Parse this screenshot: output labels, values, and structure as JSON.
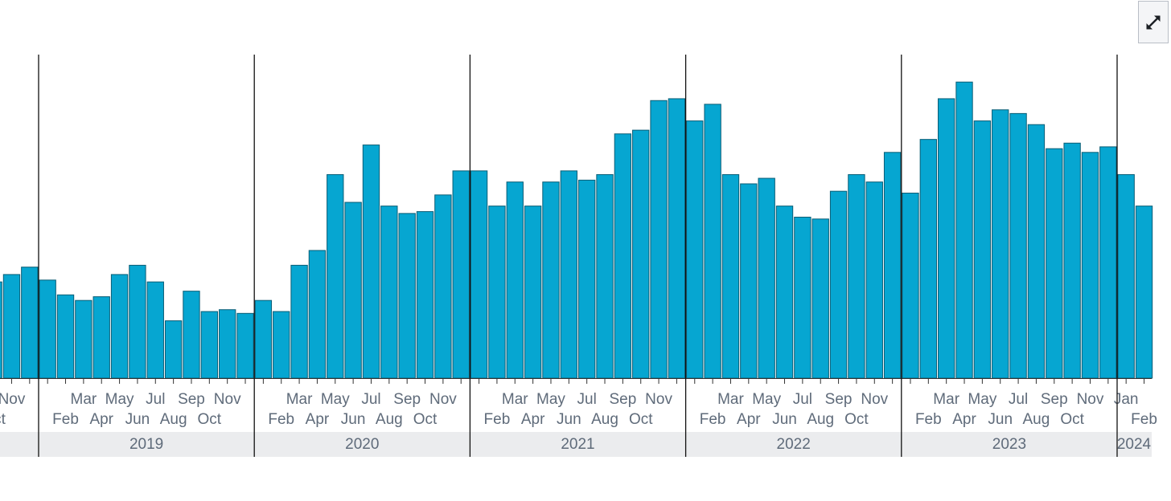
{
  "toolbar": {
    "expand_icon": "expand-arrows-icon"
  },
  "colors": {
    "bar_fill": "#06a6d1",
    "bar_stroke": "#0a5d75",
    "year_band": "#ebecee",
    "divider": "#111111",
    "label": "#5f6b7a"
  },
  "chart_data": {
    "type": "bar",
    "title": "",
    "xlabel": "",
    "ylabel": "",
    "grid": false,
    "legend": "none",
    "y_axis_visible": false,
    "series": [
      {
        "values": [
          [
            2018,
            10,
            52
          ],
          [
            2018,
            11,
            56
          ],
          [
            2018,
            12,
            60
          ],
          [
            2019,
            1,
            53
          ],
          [
            2019,
            2,
            45
          ],
          [
            2019,
            3,
            42
          ],
          [
            2019,
            4,
            44
          ],
          [
            2019,
            5,
            56
          ],
          [
            2019,
            6,
            61
          ],
          [
            2019,
            7,
            52
          ],
          [
            2019,
            8,
            31
          ],
          [
            2019,
            9,
            47
          ],
          [
            2019,
            10,
            36
          ],
          [
            2019,
            11,
            37
          ],
          [
            2019,
            12,
            35
          ],
          [
            2020,
            1,
            42
          ],
          [
            2020,
            2,
            36
          ],
          [
            2020,
            3,
            61
          ],
          [
            2020,
            4,
            69
          ],
          [
            2020,
            5,
            110
          ],
          [
            2020,
            6,
            95
          ],
          [
            2020,
            7,
            126
          ],
          [
            2020,
            8,
            93
          ],
          [
            2020,
            9,
            89
          ],
          [
            2020,
            10,
            90
          ],
          [
            2020,
            11,
            99
          ],
          [
            2020,
            12,
            112
          ],
          [
            2021,
            1,
            112
          ],
          [
            2021,
            2,
            93
          ],
          [
            2021,
            3,
            106
          ],
          [
            2021,
            4,
            93
          ],
          [
            2021,
            5,
            106
          ],
          [
            2021,
            6,
            112
          ],
          [
            2021,
            7,
            107
          ],
          [
            2021,
            8,
            110
          ],
          [
            2021,
            9,
            132
          ],
          [
            2021,
            10,
            134
          ],
          [
            2021,
            11,
            150
          ],
          [
            2021,
            12,
            151
          ],
          [
            2022,
            1,
            139
          ],
          [
            2022,
            2,
            148
          ],
          [
            2022,
            3,
            110
          ],
          [
            2022,
            4,
            105
          ],
          [
            2022,
            5,
            108
          ],
          [
            2022,
            6,
            93
          ],
          [
            2022,
            7,
            87
          ],
          [
            2022,
            8,
            86
          ],
          [
            2022,
            9,
            101
          ],
          [
            2022,
            10,
            110
          ],
          [
            2022,
            11,
            106
          ],
          [
            2022,
            12,
            122
          ],
          [
            2023,
            1,
            100
          ],
          [
            2023,
            2,
            129
          ],
          [
            2023,
            3,
            151
          ],
          [
            2023,
            4,
            160
          ],
          [
            2023,
            5,
            139
          ],
          [
            2023,
            6,
            145
          ],
          [
            2023,
            7,
            143
          ],
          [
            2023,
            8,
            137
          ],
          [
            2023,
            9,
            124
          ],
          [
            2023,
            10,
            127
          ],
          [
            2023,
            11,
            122
          ],
          [
            2023,
            12,
            125
          ],
          [
            2024,
            1,
            110
          ],
          [
            2024,
            2,
            93
          ]
        ]
      }
    ],
    "month_tick_labels": {
      "2018": [
        [
          10,
          "Oct"
        ],
        [
          11,
          "Nov"
        ]
      ],
      "2019": [
        [
          2,
          "Feb"
        ],
        [
          3,
          "Mar"
        ],
        [
          4,
          "Apr"
        ],
        [
          5,
          "May"
        ],
        [
          6,
          "Jun"
        ],
        [
          7,
          "Jul"
        ],
        [
          8,
          "Aug"
        ],
        [
          9,
          "Sep"
        ],
        [
          10,
          "Oct"
        ],
        [
          11,
          "Nov"
        ]
      ],
      "2020": [
        [
          2,
          "Feb"
        ],
        [
          3,
          "Mar"
        ],
        [
          4,
          "Apr"
        ],
        [
          5,
          "May"
        ],
        [
          6,
          "Jun"
        ],
        [
          7,
          "Jul"
        ],
        [
          8,
          "Aug"
        ],
        [
          9,
          "Sep"
        ],
        [
          10,
          "Oct"
        ],
        [
          11,
          "Nov"
        ]
      ],
      "2021": [
        [
          2,
          "Feb"
        ],
        [
          3,
          "Mar"
        ],
        [
          4,
          "Apr"
        ],
        [
          5,
          "May"
        ],
        [
          6,
          "Jun"
        ],
        [
          7,
          "Jul"
        ],
        [
          8,
          "Aug"
        ],
        [
          9,
          "Sep"
        ],
        [
          10,
          "Oct"
        ],
        [
          11,
          "Nov"
        ]
      ],
      "2022": [
        [
          2,
          "Feb"
        ],
        [
          3,
          "Mar"
        ],
        [
          4,
          "Apr"
        ],
        [
          5,
          "May"
        ],
        [
          6,
          "Jun"
        ],
        [
          7,
          "Jul"
        ],
        [
          8,
          "Aug"
        ],
        [
          9,
          "Sep"
        ],
        [
          10,
          "Oct"
        ],
        [
          11,
          "Nov"
        ]
      ],
      "2023": [
        [
          2,
          "Feb"
        ],
        [
          3,
          "Mar"
        ],
        [
          4,
          "Apr"
        ],
        [
          5,
          "May"
        ],
        [
          6,
          "Jun"
        ],
        [
          7,
          "Jul"
        ],
        [
          8,
          "Aug"
        ],
        [
          9,
          "Sep"
        ],
        [
          10,
          "Oct"
        ],
        [
          11,
          "Nov"
        ]
      ],
      "2024": [
        [
          1,
          "Jan"
        ],
        [
          2,
          "Feb"
        ]
      ]
    },
    "year_labels": [
      "2019",
      "2020",
      "2021",
      "2022",
      "2023",
      "2024"
    ]
  }
}
